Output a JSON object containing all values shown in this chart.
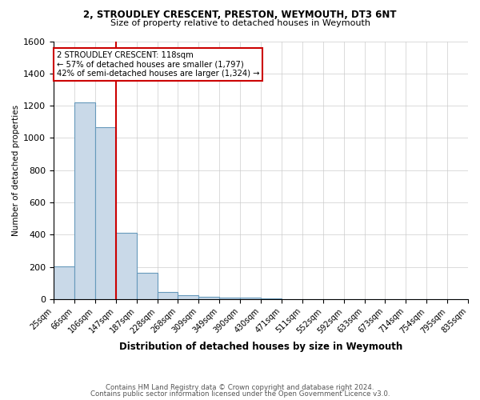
{
  "title1": "2, STROUDLEY CRESCENT, PRESTON, WEYMOUTH, DT3 6NT",
  "title2": "Size of property relative to detached houses in Weymouth",
  "xlabel": "Distribution of detached houses by size in Weymouth",
  "ylabel": "Number of detached properties",
  "footer1": "Contains HM Land Registry data © Crown copyright and database right 2024.",
  "footer2": "Contains public sector information licensed under the Open Government Licence v3.0.",
  "bin_labels": [
    "25sqm",
    "66sqm",
    "106sqm",
    "147sqm",
    "187sqm",
    "228sqm",
    "268sqm",
    "309sqm",
    "349sqm",
    "390sqm",
    "430sqm",
    "471sqm",
    "511sqm",
    "552sqm",
    "592sqm",
    "633sqm",
    "673sqm",
    "714sqm",
    "754sqm",
    "795sqm",
    "835sqm"
  ],
  "bar_values": [
    205,
    1220,
    1065,
    410,
    165,
    45,
    25,
    15,
    10,
    10,
    5,
    0,
    0,
    0,
    0,
    0,
    0,
    0,
    0,
    0
  ],
  "bar_color": "#c9d9e8",
  "bar_edge_color": "#6699bb",
  "red_line_bin_index": 2,
  "annotation_text": "2 STROUDLEY CRESCENT: 118sqm\n← 57% of detached houses are smaller (1,797)\n42% of semi-detached houses are larger (1,324) →",
  "annotation_box_color": "#ffffff",
  "annotation_box_edge": "#cc0000",
  "ylim": [
    0,
    1600
  ],
  "yticks": [
    0,
    200,
    400,
    600,
    800,
    1000,
    1200,
    1400,
    1600
  ],
  "background_color": "#ffffff",
  "grid_color": "#cccccc"
}
